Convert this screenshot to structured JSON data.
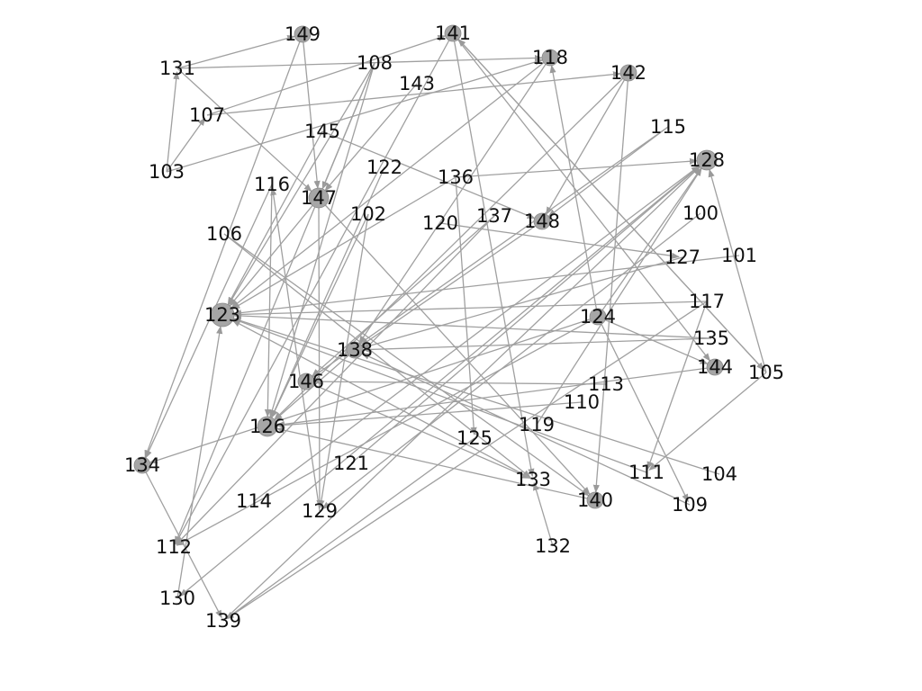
{
  "graph": {
    "directed": true,
    "nodes": [
      {
        "id": "100",
        "size": 1
      },
      {
        "id": "101",
        "size": 1
      },
      {
        "id": "102",
        "size": 1
      },
      {
        "id": "103",
        "size": 1
      },
      {
        "id": "104",
        "size": 1
      },
      {
        "id": "105",
        "size": 1
      },
      {
        "id": "106",
        "size": 1
      },
      {
        "id": "107",
        "size": 1
      },
      {
        "id": "108",
        "size": 1
      },
      {
        "id": "109",
        "size": 1
      },
      {
        "id": "110",
        "size": 1
      },
      {
        "id": "111",
        "size": 1
      },
      {
        "id": "112",
        "size": 1
      },
      {
        "id": "113",
        "size": 1
      },
      {
        "id": "114",
        "size": 1
      },
      {
        "id": "115",
        "size": 1
      },
      {
        "id": "116",
        "size": 1
      },
      {
        "id": "117",
        "size": 1
      },
      {
        "id": "118",
        "size": 2
      },
      {
        "id": "119",
        "size": 1
      },
      {
        "id": "120",
        "size": 1
      },
      {
        "id": "121",
        "size": 1
      },
      {
        "id": "122",
        "size": 1
      },
      {
        "id": "123",
        "size": 4
      },
      {
        "id": "124",
        "size": 2
      },
      {
        "id": "125",
        "size": 1
      },
      {
        "id": "126",
        "size": 3
      },
      {
        "id": "127",
        "size": 1
      },
      {
        "id": "128",
        "size": 3
      },
      {
        "id": "129",
        "size": 1
      },
      {
        "id": "130",
        "size": 1
      },
      {
        "id": "131",
        "size": 1
      },
      {
        "id": "132",
        "size": 1
      },
      {
        "id": "133",
        "size": 1
      },
      {
        "id": "134",
        "size": 2
      },
      {
        "id": "135",
        "size": 1
      },
      {
        "id": "136",
        "size": 1
      },
      {
        "id": "137",
        "size": 1
      },
      {
        "id": "138",
        "size": 2
      },
      {
        "id": "139",
        "size": 1
      },
      {
        "id": "140",
        "size": 2
      },
      {
        "id": "141",
        "size": 2
      },
      {
        "id": "142",
        "size": 2
      },
      {
        "id": "143",
        "size": 1
      },
      {
        "id": "144",
        "size": 2
      },
      {
        "id": "145",
        "size": 1
      },
      {
        "id": "146",
        "size": 2
      },
      {
        "id": "147",
        "size": 3
      },
      {
        "id": "148",
        "size": 2
      },
      {
        "id": "149",
        "size": 2
      }
    ],
    "edges": [
      [
        "131",
        "149"
      ],
      [
        "131",
        "118"
      ],
      [
        "149",
        "147"
      ],
      [
        "149",
        "134"
      ],
      [
        "103",
        "131"
      ],
      [
        "103",
        "107"
      ],
      [
        "103",
        "118"
      ],
      [
        "107",
        "142"
      ],
      [
        "131",
        "147"
      ],
      [
        "107",
        "141"
      ],
      [
        "108",
        "147"
      ],
      [
        "108",
        "123"
      ],
      [
        "108",
        "112"
      ],
      [
        "108",
        "126"
      ],
      [
        "143",
        "147"
      ],
      [
        "141",
        "112"
      ],
      [
        "141",
        "144"
      ],
      [
        "141",
        "133"
      ],
      [
        "141",
        "105"
      ],
      [
        "118",
        "123"
      ],
      [
        "118",
        "138"
      ],
      [
        "142",
        "126"
      ],
      [
        "142",
        "140"
      ],
      [
        "142",
        "148"
      ],
      [
        "115",
        "146"
      ],
      [
        "115",
        "148"
      ],
      [
        "145",
        "123"
      ],
      [
        "145",
        "148"
      ],
      [
        "122",
        "126"
      ],
      [
        "136",
        "128"
      ],
      [
        "136",
        "125"
      ],
      [
        "136",
        "123"
      ],
      [
        "116",
        "134"
      ],
      [
        "116",
        "126"
      ],
      [
        "147",
        "123"
      ],
      [
        "147",
        "140"
      ],
      [
        "147",
        "129"
      ],
      [
        "102",
        "126"
      ],
      [
        "102",
        "129"
      ],
      [
        "106",
        "133"
      ],
      [
        "106",
        "140"
      ],
      [
        "137",
        "146"
      ],
      [
        "137",
        "112"
      ],
      [
        "120",
        "127"
      ],
      [
        "148",
        "138"
      ],
      [
        "100",
        "129"
      ],
      [
        "101",
        "123"
      ],
      [
        "127",
        "138"
      ],
      [
        "117",
        "139"
      ],
      [
        "117",
        "111"
      ],
      [
        "117",
        "123"
      ],
      [
        "124",
        "128"
      ],
      [
        "124",
        "112"
      ],
      [
        "124",
        "134"
      ],
      [
        "124",
        "144"
      ],
      [
        "124",
        "109"
      ],
      [
        "124",
        "118"
      ],
      [
        "135",
        "138"
      ],
      [
        "135",
        "123"
      ],
      [
        "144",
        "126"
      ],
      [
        "105",
        "128"
      ],
      [
        "105",
        "141"
      ],
      [
        "105",
        "111"
      ],
      [
        "113",
        "146"
      ],
      [
        "110",
        "126"
      ],
      [
        "119",
        "128"
      ],
      [
        "125",
        "139"
      ],
      [
        "121",
        "128"
      ],
      [
        "114",
        "128"
      ],
      [
        "104",
        "123"
      ],
      [
        "109",
        "138"
      ],
      [
        "132",
        "133"
      ],
      [
        "140",
        "126"
      ],
      [
        "146",
        "133"
      ],
      [
        "130",
        "123"
      ],
      [
        "129",
        "116"
      ],
      [
        "111",
        "123"
      ],
      [
        "133",
        "123"
      ],
      [
        "134",
        "139"
      ],
      [
        "138",
        "126"
      ],
      [
        "128",
        "130"
      ],
      [
        "139",
        "128"
      ]
    ]
  }
}
